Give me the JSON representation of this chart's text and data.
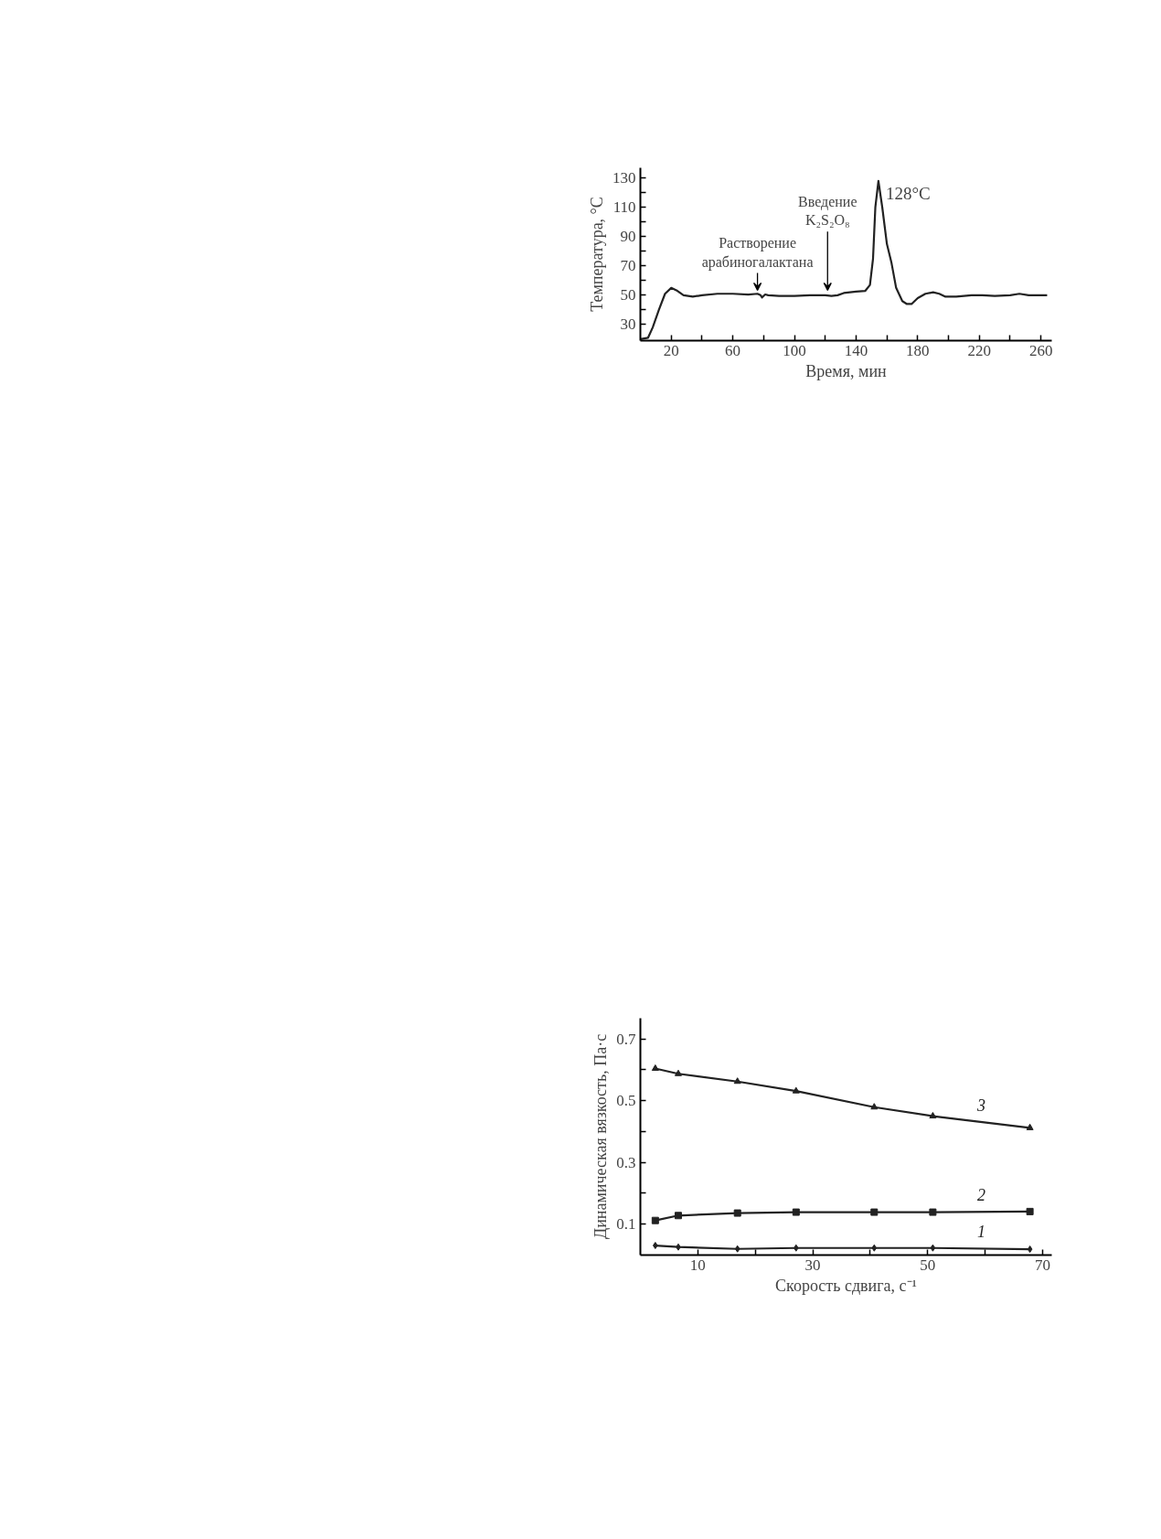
{
  "chart_data": [
    {
      "type": "line",
      "xlabel": "Время, мин",
      "ylabel": "Температура, °C",
      "xlim": [
        0,
        267
      ],
      "ylim": [
        19,
        137
      ],
      "xticks": [
        20,
        {
          "value": 40,
          "label": null
        },
        60,
        {
          "value": 80,
          "label": null
        },
        100,
        {
          "value": 120,
          "label": null
        },
        140,
        {
          "value": 160,
          "label": null
        },
        180,
        {
          "value": 200,
          "label": null
        },
        220,
        {
          "value": 240,
          "label": null
        },
        260
      ],
      "yticks": [
        30,
        {
          "value": 40,
          "label": null
        },
        50,
        {
          "value": 60,
          "label": null
        },
        70,
        {
          "value": 80,
          "label": null
        },
        90,
        {
          "value": 100,
          "label": null
        },
        110,
        {
          "value": 120,
          "label": null
        },
        130
      ],
      "grid": false,
      "marker": "none",
      "line_style": "solid",
      "series": [
        {
          "color": "#222222",
          "x": [
            0,
            5,
            8,
            12,
            16,
            20,
            24,
            28,
            34,
            40,
            50,
            60,
            70,
            76,
            78,
            79,
            81,
            83,
            90,
            100,
            110,
            120,
            124,
            128,
            132,
            140,
            146,
            149,
            151,
            152.5,
            154.5,
            157,
            160,
            163,
            166,
            170,
            173,
            176,
            180,
            185,
            190,
            194,
            198,
            205,
            215,
            222,
            230,
            240,
            246,
            252,
            264
          ],
          "values": [
            20,
            21,
            28,
            40,
            51,
            55,
            53,
            50,
            49,
            50,
            51,
            51,
            50.5,
            51,
            50,
            48.5,
            50.5,
            50,
            49.5,
            49.5,
            50,
            50,
            49.5,
            50,
            51.5,
            52.5,
            53,
            57,
            75,
            110,
            128,
            110,
            85,
            72,
            55,
            46,
            44,
            44,
            48,
            51,
            52,
            51,
            49,
            49,
            50,
            50,
            49.5,
            50,
            51,
            50,
            50
          ],
          "value_labels": [
            null,
            null,
            null,
            null,
            null,
            null,
            null,
            null,
            null,
            null,
            null,
            null,
            null,
            null,
            null,
            null,
            null,
            null,
            null,
            null,
            null,
            null,
            null,
            null,
            null,
            null,
            null,
            null,
            null,
            null,
            "128°C",
            null,
            null,
            null,
            null,
            null,
            null,
            null,
            null,
            null,
            null,
            null,
            null,
            null,
            null,
            null,
            null,
            null,
            null,
            null,
            null
          ]
        }
      ],
      "annotations": [
        {
          "text": "Растворение\nарабиногалактана",
          "x": 76,
          "y": 51
        },
        {
          "text": "Введение\nK₂S₂O₈",
          "x": 121.5,
          "y": 51
        }
      ]
    },
    {
      "type": "line",
      "xlabel": "Скорость сдвига, с⁻¹",
      "ylabel": "Динамическая вязкость, Па·с",
      "xlim": [
        0,
        71.6
      ],
      "ylim": [
        0,
        0.767
      ],
      "xticks": [
        10,
        {
          "value": 20,
          "label": null
        },
        30,
        {
          "value": 40,
          "label": null
        },
        50,
        {
          "value": 60,
          "label": null
        },
        70
      ],
      "yticks": [
        0.1,
        {
          "value": 0.2,
          "label": null
        },
        0.3,
        {
          "value": 0.4,
          "label": null
        },
        0.5,
        {
          "value": 0.6,
          "label": null
        },
        0.7
      ],
      "grid": false,
      "line_style": "solid",
      "x": [
        2.6,
        6.6,
        16.9,
        27.1,
        40.7,
        50.9,
        67.8
      ],
      "series": [
        {
          "name": "1",
          "color": "#222222",
          "marker": "diamond",
          "values": [
            0.031,
            0.026,
            0.02,
            0.023,
            0.023,
            0.023,
            0.019
          ]
        },
        {
          "name": "2",
          "color": "#222222",
          "marker": "square",
          "values": [
            0.112,
            0.128,
            0.136,
            0.139,
            0.139,
            0.139,
            0.141
          ]
        },
        {
          "name": "3",
          "color": "#222222",
          "marker": "triangle",
          "values": [
            0.604,
            0.587,
            0.562,
            0.531,
            0.479,
            0.45,
            0.412
          ]
        }
      ]
    }
  ]
}
